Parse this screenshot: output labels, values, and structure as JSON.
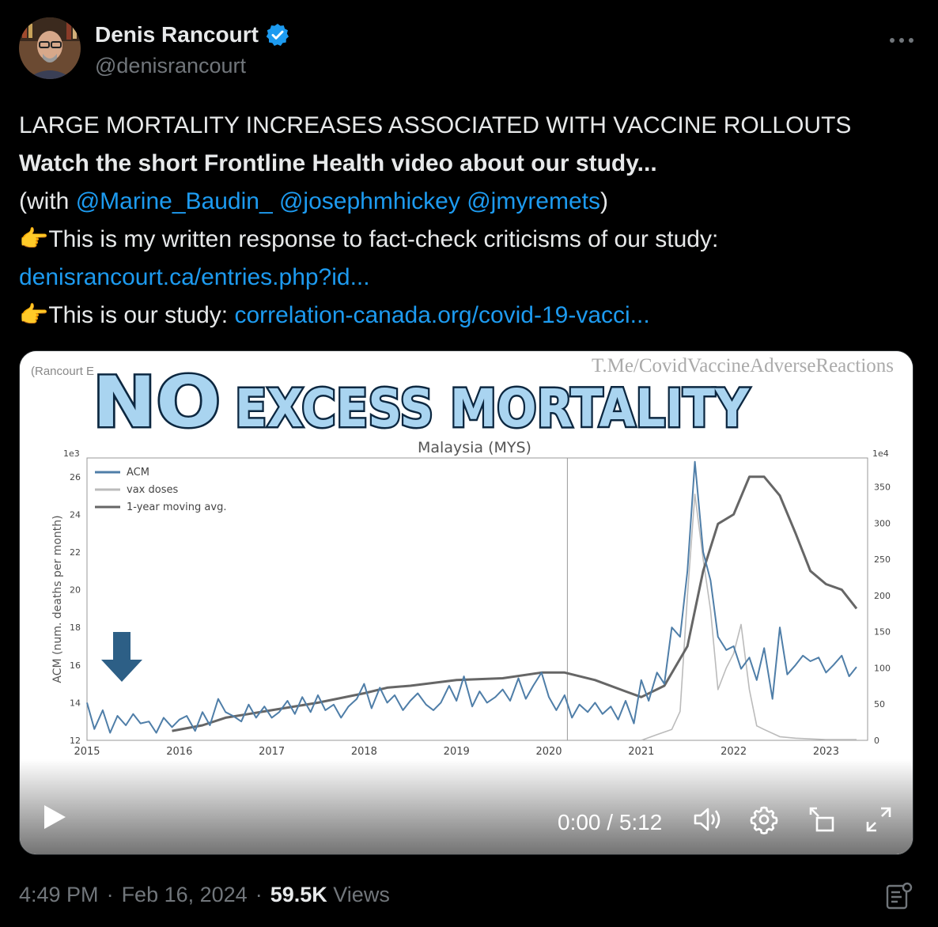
{
  "author": {
    "name": "Denis Rancourt",
    "handle": "@denisrancourt",
    "verified_icon": "verified-badge-icon"
  },
  "tweet": {
    "line1": "LARGE MORTALITY INCREASES ASSOCIATED WITH VACCINE ROLLOUTS",
    "line2": "Watch the short Frontline Health video about our study...",
    "line3_pre": "(with ",
    "mention1": "@Marine_Baudin_",
    "mention2": "@josephmhickey",
    "mention3": "@jmyremets",
    "line3_post": ")",
    "line4": "This is my written response to fact-check criticisms of our study:",
    "link1": "denisrancourt.ca/entries.php?id...",
    "line6": "This is our study: ",
    "link2": "correlation-canada.org/covid-19-vacci...",
    "pointing_emoji": "👉"
  },
  "video": {
    "overlay_title_no": "NO",
    "overlay_title_rest": "EXCESS MORTALITY",
    "watermark": "T.Me/CovidVaccineAdverseReactions",
    "source_label": "(Rancourt E",
    "timecode": "0:00 / 5:12",
    "chart_data": {
      "type": "line",
      "title": "Malaysia (MYS)",
      "ylabel": "ACM (num. deaths per month)",
      "y_multiplier_left": "1e3",
      "y_multiplier_right": "1e4",
      "ylim_left": [
        12,
        27
      ],
      "ylim_right": [
        0,
        390
      ],
      "x_ticks": [
        "2015",
        "2016",
        "2017",
        "2018",
        "2019",
        "2020",
        "2021",
        "2022",
        "2023"
      ],
      "y_ticks_left": [
        "12",
        "14",
        "16",
        "18",
        "20",
        "22",
        "24",
        "26"
      ],
      "y_ticks_right": [
        "0",
        "50",
        "100",
        "150",
        "200",
        "250",
        "300",
        "350"
      ],
      "legend": [
        "ACM",
        "vax doses",
        "1-year moving avg."
      ],
      "legend_position": "top-left",
      "vertical_marker_x": 2020.2,
      "series": [
        {
          "name": "ACM",
          "color": "#4f7ea8",
          "points": [
            [
              2015.0,
              14.0
            ],
            [
              2015.08,
              12.6
            ],
            [
              2015.17,
              13.6
            ],
            [
              2015.25,
              12.4
            ],
            [
              2015.33,
              13.3
            ],
            [
              2015.42,
              12.8
            ],
            [
              2015.5,
              13.4
            ],
            [
              2015.58,
              12.9
            ],
            [
              2015.67,
              13.0
            ],
            [
              2015.75,
              12.4
            ],
            [
              2015.83,
              13.2
            ],
            [
              2015.92,
              12.7
            ],
            [
              2016.0,
              13.1
            ],
            [
              2016.08,
              13.3
            ],
            [
              2016.17,
              12.5
            ],
            [
              2016.25,
              13.5
            ],
            [
              2016.33,
              12.8
            ],
            [
              2016.42,
              14.2
            ],
            [
              2016.5,
              13.5
            ],
            [
              2016.58,
              13.3
            ],
            [
              2016.67,
              13.0
            ],
            [
              2016.75,
              13.9
            ],
            [
              2016.83,
              13.2
            ],
            [
              2016.92,
              13.8
            ],
            [
              2017.0,
              13.2
            ],
            [
              2017.08,
              13.5
            ],
            [
              2017.17,
              14.1
            ],
            [
              2017.25,
              13.4
            ],
            [
              2017.33,
              14.3
            ],
            [
              2017.42,
              13.5
            ],
            [
              2017.5,
              14.4
            ],
            [
              2017.58,
              13.6
            ],
            [
              2017.67,
              13.9
            ],
            [
              2017.75,
              13.2
            ],
            [
              2017.83,
              13.8
            ],
            [
              2017.92,
              14.2
            ],
            [
              2018.0,
              15.0
            ],
            [
              2018.08,
              13.7
            ],
            [
              2018.17,
              14.8
            ],
            [
              2018.25,
              14.0
            ],
            [
              2018.33,
              14.4
            ],
            [
              2018.42,
              13.6
            ],
            [
              2018.5,
              14.1
            ],
            [
              2018.58,
              14.5
            ],
            [
              2018.67,
              13.9
            ],
            [
              2018.75,
              13.6
            ],
            [
              2018.83,
              14.0
            ],
            [
              2018.92,
              14.9
            ],
            [
              2019.0,
              14.1
            ],
            [
              2019.08,
              15.4
            ],
            [
              2019.17,
              13.8
            ],
            [
              2019.25,
              14.6
            ],
            [
              2019.33,
              14.0
            ],
            [
              2019.42,
              14.3
            ],
            [
              2019.5,
              14.7
            ],
            [
              2019.58,
              14.1
            ],
            [
              2019.67,
              15.3
            ],
            [
              2019.75,
              14.2
            ],
            [
              2019.83,
              14.9
            ],
            [
              2019.92,
              15.6
            ],
            [
              2020.0,
              14.3
            ],
            [
              2020.08,
              13.6
            ],
            [
              2020.17,
              14.4
            ],
            [
              2020.25,
              13.2
            ],
            [
              2020.33,
              13.9
            ],
            [
              2020.42,
              13.5
            ],
            [
              2020.5,
              14.0
            ],
            [
              2020.58,
              13.4
            ],
            [
              2020.67,
              13.8
            ],
            [
              2020.75,
              13.1
            ],
            [
              2020.83,
              14.1
            ],
            [
              2020.92,
              12.9
            ],
            [
              2021.0,
              15.2
            ],
            [
              2021.08,
              14.1
            ],
            [
              2021.17,
              15.6
            ],
            [
              2021.25,
              15.0
            ],
            [
              2021.33,
              18.0
            ],
            [
              2021.42,
              17.5
            ],
            [
              2021.5,
              21.0
            ],
            [
              2021.58,
              26.8
            ],
            [
              2021.67,
              22.0
            ],
            [
              2021.75,
              20.5
            ],
            [
              2021.83,
              17.5
            ],
            [
              2021.92,
              16.8
            ],
            [
              2022.0,
              17.0
            ],
            [
              2022.08,
              15.8
            ],
            [
              2022.17,
              16.4
            ],
            [
              2022.25,
              15.2
            ],
            [
              2022.33,
              16.9
            ],
            [
              2022.42,
              14.2
            ],
            [
              2022.5,
              18.0
            ],
            [
              2022.58,
              15.5
            ],
            [
              2022.67,
              16.0
            ],
            [
              2022.75,
              16.5
            ],
            [
              2022.83,
              16.2
            ],
            [
              2022.92,
              16.4
            ],
            [
              2023.0,
              15.6
            ],
            [
              2023.08,
              16.0
            ],
            [
              2023.17,
              16.5
            ],
            [
              2023.25,
              15.4
            ],
            [
              2023.33,
              15.9
            ]
          ]
        },
        {
          "name": "1-year moving avg.",
          "color": "#666666",
          "points": [
            [
              2015.92,
              12.5
            ],
            [
              2016.25,
              12.8
            ],
            [
              2016.5,
              13.2
            ],
            [
              2016.75,
              13.4
            ],
            [
              2017.0,
              13.6
            ],
            [
              2017.5,
              14.0
            ],
            [
              2018.0,
              14.5
            ],
            [
              2018.25,
              14.8
            ],
            [
              2018.5,
              14.9
            ],
            [
              2019.0,
              15.2
            ],
            [
              2019.5,
              15.3
            ],
            [
              2019.92,
              15.6
            ],
            [
              2020.17,
              15.6
            ],
            [
              2020.5,
              15.2
            ],
            [
              2020.83,
              14.6
            ],
            [
              2021.0,
              14.3
            ],
            [
              2021.25,
              14.9
            ],
            [
              2021.5,
              17.0
            ],
            [
              2021.67,
              21.0
            ],
            [
              2021.83,
              23.5
            ],
            [
              2022.0,
              24.0
            ],
            [
              2022.17,
              26.0
            ],
            [
              2022.33,
              26.0
            ],
            [
              2022.5,
              25.0
            ],
            [
              2022.67,
              23.0
            ],
            [
              2022.83,
              21.0
            ],
            [
              2023.0,
              20.3
            ],
            [
              2023.17,
              20.0
            ],
            [
              2023.33,
              19.0
            ]
          ]
        },
        {
          "name": "vax doses",
          "color": "#bbbbbb",
          "points": [
            [
              2021.0,
              0
            ],
            [
              2021.17,
              8
            ],
            [
              2021.33,
              15
            ],
            [
              2021.42,
              40
            ],
            [
              2021.5,
              200
            ],
            [
              2021.58,
              340
            ],
            [
              2021.67,
              250
            ],
            [
              2021.75,
              180
            ],
            [
              2021.83,
              70
            ],
            [
              2021.92,
              100
            ],
            [
              2022.0,
              120
            ],
            [
              2022.08,
              160
            ],
            [
              2022.17,
              70
            ],
            [
              2022.25,
              20
            ],
            [
              2022.33,
              15
            ],
            [
              2022.5,
              5
            ],
            [
              2022.67,
              3
            ],
            [
              2022.83,
              2
            ],
            [
              2023.0,
              1
            ],
            [
              2023.17,
              1
            ],
            [
              2023.33,
              1
            ]
          ]
        }
      ]
    }
  },
  "footer": {
    "time": "4:49 PM",
    "sep1": "·",
    "date": "Feb 16, 2024",
    "sep2": "·",
    "views_count": "59.5K",
    "views_label": "Views"
  }
}
